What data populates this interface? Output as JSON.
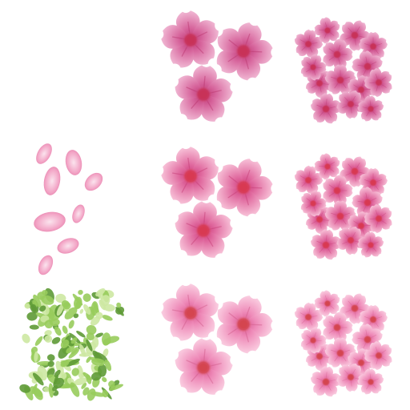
{
  "sheet": {
    "background": "#ffffff",
    "grid": {
      "rows": 3,
      "cols": 3
    },
    "cells": [
      {
        "icon": "empty-cell",
        "kind": "empty"
      },
      {
        "icon": "three-large-blossoms-icon",
        "kind": "large",
        "variant": "deep"
      },
      {
        "icon": "blossom-cluster-icon",
        "kind": "cluster",
        "variant": "deep"
      },
      {
        "icon": "scattered-petals-icon",
        "kind": "petals"
      },
      {
        "icon": "three-large-blossoms-icon",
        "kind": "large",
        "variant": "bright"
      },
      {
        "icon": "blossom-cluster-icon",
        "kind": "cluster",
        "variant": "bright"
      },
      {
        "icon": "green-foliage-icon",
        "kind": "leaves"
      },
      {
        "icon": "three-large-blossoms-icon",
        "kind": "large",
        "variant": "soft"
      },
      {
        "icon": "blossom-cluster-icon",
        "kind": "cluster",
        "variant": "soft"
      }
    ]
  },
  "palettes": {
    "deep": {
      "outer": "#f2bdd7",
      "mid": "#d7669d",
      "edge": "#c13c7a",
      "center": "#c83258",
      "vein": "#b8336c"
    },
    "bright": {
      "outer": "#f9c8dc",
      "mid": "#e16da1",
      "edge": "#cf3f80",
      "center": "#d83a52",
      "vein": "#c43a73"
    },
    "soft": {
      "outer": "#fbd3e4",
      "mid": "#ee8ab8",
      "edge": "#dc5c95",
      "center": "#d4454f",
      "vein": "#cf5a88"
    },
    "petal": {
      "outer": "#fbe4ee",
      "mid": "#f2a2c4",
      "edge": "#e27aa6"
    },
    "leaf": {
      "light": "#cde8a2",
      "mid": "#98cc5c",
      "dark": "#5e9a36"
    }
  }
}
